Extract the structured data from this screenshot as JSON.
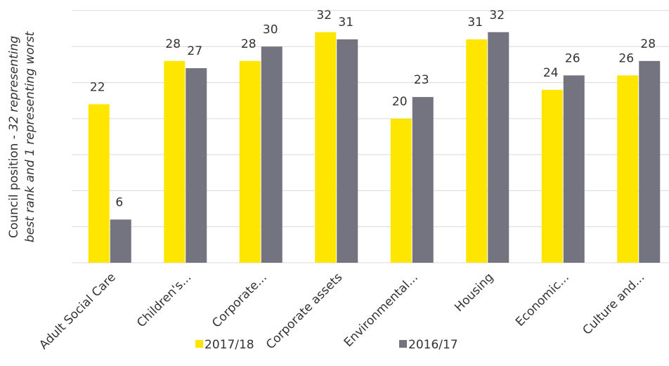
{
  "chart_data": {
    "type": "bar",
    "y_label": [
      "Council position - ",
      "32 representing",
      "best rank and 1 representing worst"
    ],
    "categories": [
      "Adult Social Care",
      "Children's...",
      "Corporate...",
      "Corporate assets",
      "Environmental...",
      "Housing",
      "Economic...",
      "Culture and..."
    ],
    "series": [
      {
        "name": "2017/18",
        "color": "#ffe600",
        "values": [
          22,
          28,
          28,
          32,
          20,
          31,
          24,
          26
        ]
      },
      {
        "name": "2016/17",
        "color": "#747480",
        "values": [
          6,
          27,
          30,
          31,
          23,
          32,
          26,
          28
        ]
      }
    ],
    "ylim": [
      0,
      35
    ],
    "yticks": [
      0,
      5,
      10,
      15,
      20,
      25,
      30,
      35
    ],
    "grid": true
  }
}
